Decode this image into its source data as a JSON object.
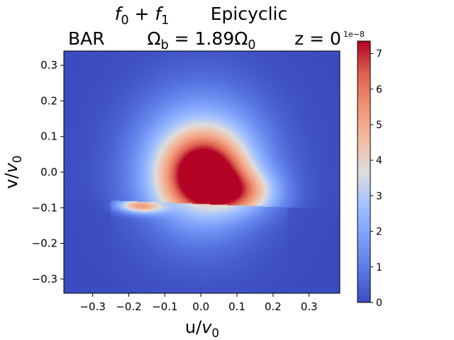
{
  "chart_data": {
    "type": "heatmap",
    "title_line1": {
      "left": "f_0 + f_1",
      "right": "Epicyclic"
    },
    "title_line2": {
      "model": "BAR",
      "pattern_speed": "Ω_b = 1.89Ω_0",
      "height": "z = 0"
    },
    "xlabel": "u/v_0",
    "ylabel": "v/v_0",
    "xlim": [
      -0.38,
      0.385
    ],
    "ylim": [
      -0.34,
      0.34
    ],
    "xticks": [
      -0.3,
      -0.2,
      -0.1,
      0.0,
      0.1,
      0.2,
      0.3
    ],
    "xtick_labels": [
      "−0.3",
      "−0.2",
      "−0.1",
      "0.0",
      "0.1",
      "0.2",
      "0.3"
    ],
    "yticks": [
      0.3,
      0.2,
      0.1,
      0.0,
      -0.1,
      -0.2,
      -0.3
    ],
    "ytick_labels": [
      "0.3",
      "0.2",
      "0.1",
      "0.0",
      "−0.1",
      "−0.2",
      "−0.3"
    ],
    "colormap": "coolwarm",
    "colorbar": {
      "vmin": 0,
      "vmax": 7.35,
      "ticks": [
        0,
        1,
        2,
        3,
        4,
        5,
        6,
        7
      ],
      "tick_labels": [
        "0",
        "1",
        "2",
        "3",
        "4",
        "5",
        "6",
        "7"
      ],
      "offset_label": "1e−8"
    },
    "density_model": {
      "description_units": "u, v in v_0; density in units of 1e-8",
      "peak_center": [
        0.0,
        0.0
      ],
      "core_value_max": 7.35,
      "discontinuity_v": -0.09,
      "discontinuity_tilt": -0.04
    }
  }
}
